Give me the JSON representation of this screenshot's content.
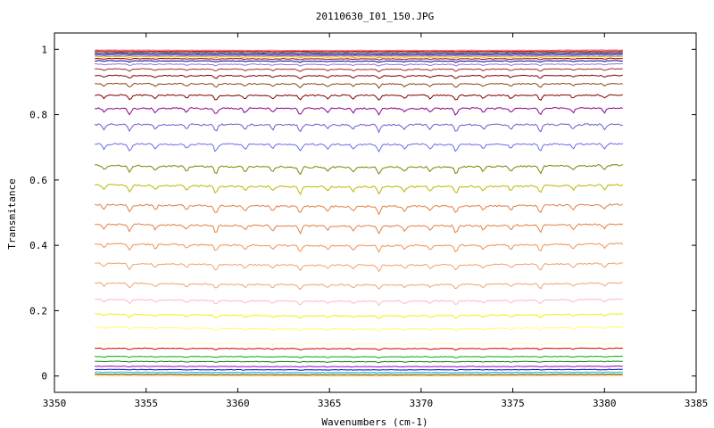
{
  "chart_data": {
    "type": "line",
    "title": "20110630_I01_150.JPG",
    "xlabel": "Wavenumbers (cm-1)",
    "ylabel": "Transmitance",
    "xlim": [
      3350,
      3385
    ],
    "ylim": [
      -0.05,
      1.05
    ],
    "x_ticks": [
      3350,
      3355,
      3360,
      3365,
      3370,
      3375,
      3380,
      3385
    ],
    "y_ticks": [
      0,
      0.2,
      0.4,
      0.6,
      0.8,
      1
    ],
    "x_tick_labels": [
      "3350",
      "3355",
      "3360",
      "3365",
      "3370",
      "3375",
      "3380",
      "3385"
    ],
    "y_tick_labels": [
      "0",
      "0.2",
      "0.4",
      "0.6",
      "0.8",
      "1"
    ],
    "x_range": [
      3352.2,
      3381.0
    ],
    "grid": false,
    "absorption_lines_x": [
      3352.7,
      3354.1,
      3355.5,
      3357.2,
      3358.8,
      3360.4,
      3361.9,
      3363.4,
      3364.9,
      3366.3,
      3367.7,
      3369.1,
      3370.5,
      3371.9,
      3373.4,
      3374.9,
      3376.5,
      3378.3,
      3380.0
    ],
    "series": [
      {
        "baseline": 0.998,
        "color": "#ff69b4"
      },
      {
        "baseline": 0.995,
        "color": "#ff0000"
      },
      {
        "baseline": 0.992,
        "color": "#00aa00"
      },
      {
        "baseline": 0.988,
        "color": "#4b0082"
      },
      {
        "baseline": 0.985,
        "color": "#ff00ff"
      },
      {
        "baseline": 0.982,
        "color": "#00aaaa"
      },
      {
        "baseline": 0.978,
        "color": "#ffa500"
      },
      {
        "baseline": 0.972,
        "color": "#8b0000"
      },
      {
        "baseline": 0.965,
        "color": "#00008b"
      },
      {
        "baseline": 0.955,
        "color": "#9370db"
      },
      {
        "baseline": 0.94,
        "color": "#a52a2a"
      },
      {
        "baseline": 0.92,
        "color": "#800000"
      },
      {
        "baseline": 0.895,
        "color": "#8b4513"
      },
      {
        "baseline": 0.86,
        "color": "#800000"
      },
      {
        "baseline": 0.82,
        "color": "#8b008b"
      },
      {
        "baseline": 0.77,
        "color": "#6a5acd"
      },
      {
        "baseline": 0.71,
        "color": "#6a6aee"
      },
      {
        "baseline": 0.645,
        "color": "#808000"
      },
      {
        "baseline": 0.585,
        "color": "#b8b800"
      },
      {
        "baseline": 0.525,
        "color": "#e08040"
      },
      {
        "baseline": 0.465,
        "color": "#e08040"
      },
      {
        "baseline": 0.405,
        "color": "#f09050"
      },
      {
        "baseline": 0.345,
        "color": "#f0a070"
      },
      {
        "baseline": 0.285,
        "color": "#f0a070"
      },
      {
        "baseline": 0.235,
        "color": "#ffb6c1"
      },
      {
        "baseline": 0.19,
        "color": "#f0f000"
      },
      {
        "baseline": 0.15,
        "color": "#ffff66"
      },
      {
        "baseline": 0.1,
        "color": "#ffffaa"
      },
      {
        "baseline": 0.085,
        "color": "#cc0000"
      },
      {
        "baseline": 0.06,
        "color": "#00aa00"
      },
      {
        "baseline": 0.045,
        "color": "#008800"
      },
      {
        "baseline": 0.03,
        "color": "#9900cc"
      },
      {
        "baseline": 0.02,
        "color": "#0000cc"
      },
      {
        "baseline": 0.012,
        "color": "#00cccc"
      },
      {
        "baseline": 0.006,
        "color": "#555555"
      },
      {
        "baseline": 0.002,
        "color": "#ffa500"
      }
    ]
  }
}
